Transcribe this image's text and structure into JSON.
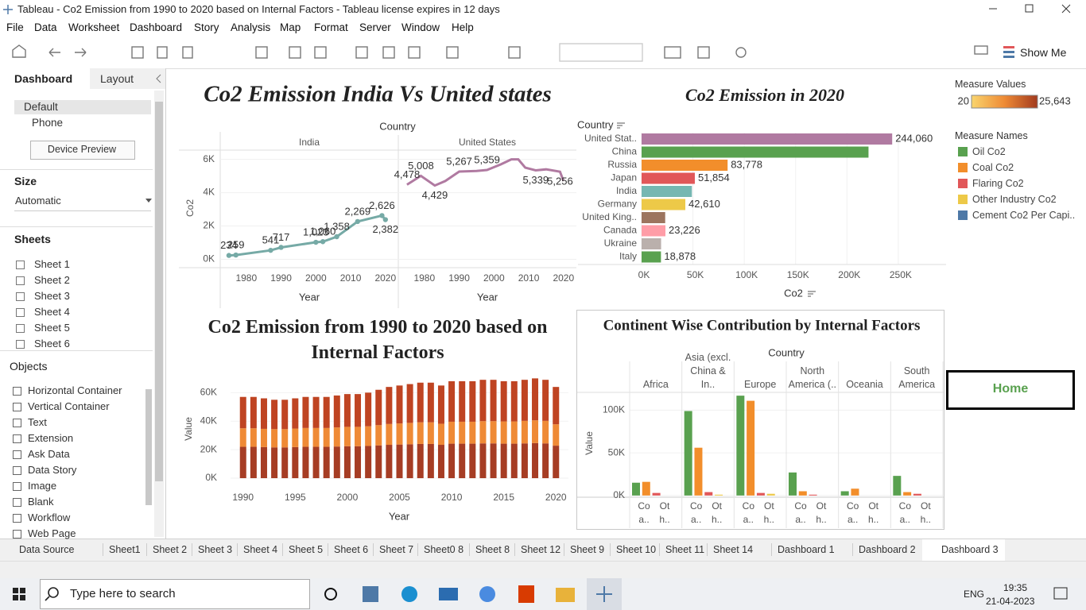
{
  "window": {
    "title": "Tableau - Co2 Emission from 1990 to 2020 based on Internal Factors - Tableau license expires in 12 days"
  },
  "menu": [
    "File",
    "Data",
    "Worksheet",
    "Dashboard",
    "Story",
    "Analysis",
    "Map",
    "Format",
    "Server",
    "Window",
    "Help"
  ],
  "toolbar": {
    "show_me": "Show Me"
  },
  "side_panel": {
    "tabs": [
      "Dashboard",
      "Layout"
    ],
    "devices": [
      "Default",
      "Phone"
    ],
    "device_preview": "Device Preview",
    "size": {
      "title": "Size",
      "value": "Automatic"
    },
    "sheets": {
      "title": "Sheets",
      "items": [
        "Sheet 1",
        "Sheet 2",
        "Sheet 3",
        "Sheet 4",
        "Sheet 5",
        "Sheet 6"
      ]
    },
    "objects": {
      "title": "Objects",
      "items": [
        "Horizontal Container",
        "Vertical Container",
        "Text",
        "Extension",
        "Ask Data",
        "Data Story",
        "Image",
        "Blank",
        "Workflow",
        "Web Page"
      ]
    }
  },
  "chart_data": [
    {
      "type": "line",
      "title": "Co2 Emission India Vs United states",
      "column_header": "Country",
      "xlabel": "Year",
      "ylabel": "Co2",
      "xlim": [
        1972.5,
        2023.7
      ],
      "xticks": [
        1980,
        1990,
        2000,
        2010,
        2020
      ],
      "ylim": [
        -500,
        6600
      ],
      "yticks": [
        {
          "value": 0,
          "label": "0K"
        },
        {
          "value": 2000,
          "label": "2K"
        },
        {
          "value": 4000,
          "label": "4K"
        },
        {
          "value": 6000,
          "label": "6K"
        }
      ],
      "grid": true,
      "series": [
        {
          "name": "India",
          "color": "#76aaa6",
          "markers": true,
          "x": [
            1975,
            1977,
            1987,
            1990,
            2000,
            2002,
            2006,
            2012,
            2019,
            2020
          ],
          "values": [
            234,
            259,
            541,
            717,
            1023,
            1060,
            1358,
            2269,
            2626,
            2382
          ],
          "value_labels": [
            "234",
            "259",
            "541",
            "717",
            "1,023",
            "1,060",
            "1,358",
            "2,269",
            "2,626",
            "2,382"
          ]
        },
        {
          "name": "United States",
          "color": "#b07aa1",
          "markers": false,
          "x": [
            1975,
            1979,
            1983,
            1986,
            1990,
            1995,
            1998,
            2002,
            2005,
            2007,
            2009,
            2012,
            2015,
            2019,
            2020
          ],
          "values": [
            4478,
            5008,
            4429,
            4700,
            5267,
            5300,
            5359,
            5700,
            6000,
            6000,
            5500,
            5339,
            5400,
            5256,
            4700
          ],
          "value_labels": [
            "4,478",
            "5,008",
            "4,429",
            null,
            "5,267",
            null,
            "5,359",
            null,
            null,
            null,
            null,
            "5,339",
            null,
            "5,256",
            null
          ]
        }
      ]
    },
    {
      "type": "bar",
      "orientation": "horizontal",
      "title": "Co2 Emission in 2020",
      "row_header": "Country",
      "xlabel": "Co2",
      "categories": [
        "United Stat..",
        "China",
        "Russia",
        "Japan",
        "India",
        "Germany",
        "United King..",
        "Canada",
        "Ukraine",
        "Italy"
      ],
      "values": [
        244060,
        221000,
        83778,
        51854,
        49000,
        42610,
        23000,
        23226,
        19000,
        18878
      ],
      "value_labels": [
        "244,060",
        null,
        "83,778",
        "51,854",
        null,
        "42,610",
        null,
        "23,226",
        null,
        "18,878"
      ],
      "colors": [
        "#b07aa1",
        "#59a14f",
        "#f28e2b",
        "#e15759",
        "#76b7b2",
        "#edc948",
        "#9c755f",
        "#ff9da7",
        "#bab0ac",
        "#59a14f"
      ],
      "xlim": [
        0,
        295000
      ],
      "xticks": [
        {
          "value": 0,
          "label": "0K"
        },
        {
          "value": 50000,
          "label": "50K"
        },
        {
          "value": 100000,
          "label": "100K"
        },
        {
          "value": 150000,
          "label": "150K"
        },
        {
          "value": 200000,
          "label": "200K"
        },
        {
          "value": 250000,
          "label": "250K"
        }
      ]
    },
    {
      "type": "stacked_bar",
      "title": "Co2 Emission from 1990 to 2020 based on Internal Factors",
      "xlabel": "Year",
      "ylabel": "Value",
      "x": [
        1990,
        1991,
        1992,
        1993,
        1994,
        1995,
        1996,
        1997,
        1998,
        1999,
        2000,
        2001,
        2002,
        2003,
        2004,
        2005,
        2006,
        2007,
        2008,
        2009,
        2010,
        2011,
        2012,
        2013,
        2014,
        2015,
        2016,
        2017,
        2018,
        2019,
        2020
      ],
      "xlim": [
        1988.8,
        2021.2
      ],
      "xticks": [
        1990,
        1995,
        2000,
        2005,
        2010,
        2015,
        2020
      ],
      "ylim": [
        -5000,
        73000
      ],
      "yticks": [
        {
          "value": 0,
          "label": "0K"
        },
        {
          "value": 20000,
          "label": "20K"
        },
        {
          "value": 40000,
          "label": "40K"
        },
        {
          "value": 60000,
          "label": "60K"
        }
      ],
      "series": [
        {
          "color": "#a63d24",
          "values": [
            22000,
            22000,
            21800,
            21600,
            21600,
            21800,
            22000,
            22000,
            22000,
            22200,
            22400,
            22400,
            22600,
            23000,
            23400,
            23600,
            23800,
            24000,
            24000,
            23400,
            24200,
            24200,
            24200,
            24400,
            24400,
            24200,
            24200,
            24400,
            24600,
            24400,
            22800
          ]
        },
        {
          "color": "#ef8a36",
          "values": [
            13000,
            13000,
            12800,
            12800,
            12800,
            13000,
            13200,
            13200,
            13200,
            13400,
            13600,
            13600,
            13800,
            14200,
            14600,
            14800,
            15000,
            15200,
            15200,
            14800,
            15400,
            15400,
            15400,
            15600,
            15600,
            15600,
            15600,
            15800,
            16000,
            15800,
            15000
          ]
        },
        {
          "color": "#bf4422",
          "values": [
            22000,
            22000,
            21400,
            20600,
            20600,
            21200,
            21800,
            21800,
            21800,
            22400,
            23000,
            23000,
            23600,
            24800,
            26000,
            26600,
            27200,
            27800,
            27800,
            26800,
            28400,
            28400,
            28400,
            29000,
            29000,
            28200,
            28200,
            28800,
            29400,
            28800,
            26200
          ]
        }
      ]
    },
    {
      "type": "grouped_bar",
      "title": "Continent Wise Contribution by Internal Factors",
      "column_header": "Country",
      "ylabel": "Value",
      "categories": [
        "Africa",
        "Asia (excl. China & In..",
        "Europe",
        "North America (..",
        "Oceania",
        "South America"
      ],
      "bar_labels": [
        "Co a..",
        "Ot h.."
      ],
      "ylim": [
        -2000,
        119000
      ],
      "yticks": [
        {
          "value": 0,
          "label": "0K"
        },
        {
          "value": 50000,
          "label": "50K"
        },
        {
          "value": 100000,
          "label": "100K"
        }
      ],
      "series": [
        {
          "name": "Oil Co2",
          "color": "#59a14f",
          "values": [
            15000,
            99000,
            117000,
            27000,
            5000,
            23000
          ]
        },
        {
          "name": "Coal Co2",
          "color": "#f28e2b",
          "values": [
            16000,
            56000,
            111000,
            5000,
            8000,
            4000
          ]
        },
        {
          "name": "Flaring Co2",
          "color": "#e15759",
          "values": [
            3000,
            4000,
            3000,
            1000,
            0,
            2000
          ]
        },
        {
          "name": "Other Industry Co2",
          "color": "#edc948",
          "values": [
            0,
            1000,
            2000,
            0,
            0,
            0
          ]
        },
        {
          "name": "Cement Co2 Per Capi..",
          "color": "#4e79a7",
          "values": [
            0,
            0,
            0,
            0,
            0,
            0
          ]
        }
      ]
    }
  ],
  "legends": {
    "measure_values": {
      "title": "Measure Values",
      "ticks": [
        20,
        {
          "value": 25643,
          "label": "25,643"
        }
      ]
    },
    "measure_names": {
      "title": "Measure Names"
    }
  },
  "home_button": "Home",
  "sheet_tabs": [
    "Data Source",
    "Sheet1",
    "Sheet 2",
    "Sheet 3",
    "Sheet 4",
    "Sheet 5",
    "Sheet 6",
    "Sheet 7",
    "Sheet0 8",
    "Sheet 8",
    "Sheet 12",
    "Sheet 9",
    "Sheet 10",
    "Sheet 11",
    "Sheet 14",
    "Dashboard 1",
    "Dashboard 2",
    "Dashboard 3"
  ],
  "taskbar": {
    "search": "Type here to search",
    "language": "ENG",
    "time": "19:35",
    "date": "21-04-2023"
  }
}
